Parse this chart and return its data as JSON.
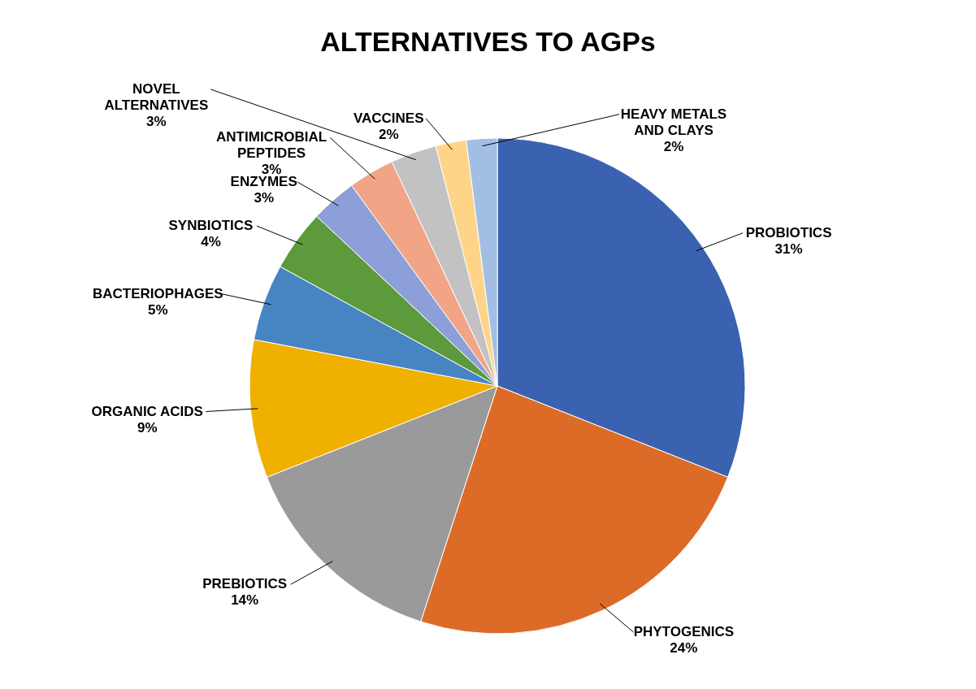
{
  "chart_data": {
    "type": "pie",
    "title": "ALTERNATIVES TO AGPs",
    "categories": [
      "PROBIOTICS",
      "PHYTOGENICS",
      "PREBIOTICS",
      "ORGANIC ACIDS",
      "BACTERIOPHAGES",
      "SYNBIOTICS",
      "ENZYMES",
      "ANTIMICROBIAL PEPTIDES",
      "NOVEL ALTERNATIVES",
      "VACCINES",
      "HEAVY METALS AND CLAYS"
    ],
    "values": [
      31,
      24,
      14,
      9,
      5,
      4,
      3,
      3,
      3,
      2,
      2
    ],
    "value_labels": [
      "31%",
      "24%",
      "14%",
      "9%",
      "5%",
      "4%",
      "3%",
      "3%",
      "3%",
      "2%",
      "2%"
    ],
    "colors": [
      "#3a62b0",
      "#dd6b28",
      "#9a9a9a",
      "#efb000",
      "#4685c2",
      "#5c9a3c",
      "#8d9fd8",
      "#f2a487",
      "#c2c2c2",
      "#fed489",
      "#a2bfe3"
    ]
  }
}
